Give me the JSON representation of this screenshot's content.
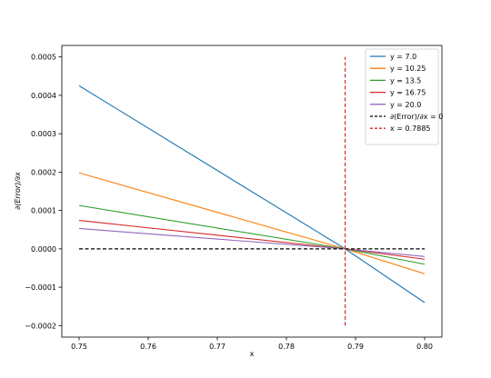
{
  "chart_data": {
    "type": "line",
    "xlabel": "x",
    "ylabel": "∂(Error)/∂x",
    "xlim": [
      0.7475,
      0.8025
    ],
    "ylim": [
      -0.00023,
      0.00053
    ],
    "xticks": [
      0.75,
      0.76,
      0.77,
      0.78,
      0.79,
      0.8
    ],
    "xtick_labels": [
      "0.75",
      "0.76",
      "0.77",
      "0.78",
      "0.79",
      "0.80"
    ],
    "yticks": [
      -0.0002,
      -0.0001,
      0.0,
      0.0001,
      0.0002,
      0.0003,
      0.0004,
      0.0005
    ],
    "ytick_labels": [
      "−0.0002",
      "−0.0001",
      "0.0000",
      "0.0001",
      "0.0002",
      "0.0003",
      "0.0004",
      "0.0005"
    ],
    "grid": false,
    "legend_position": "top-right",
    "series": [
      {
        "name": "y = 7.0",
        "color": "#1f77b4",
        "x": [
          0.75,
          0.7885,
          0.8
        ],
        "y": [
          0.000425,
          0.0,
          -0.00014
        ]
      },
      {
        "name": "y = 10.25",
        "color": "#ff7f0e",
        "x": [
          0.75,
          0.7885,
          0.8
        ],
        "y": [
          0.000198,
          0.0,
          -6.5e-05
        ]
      },
      {
        "name": "y = 13.5",
        "color": "#2ca02c",
        "x": [
          0.75,
          0.7885,
          0.8
        ],
        "y": [
          0.000113,
          0.0,
          -4e-05
        ]
      },
      {
        "name": "y = 16.75",
        "color": "#d62728",
        "x": [
          0.75,
          0.7885,
          0.8
        ],
        "y": [
          7.4e-05,
          0.0,
          -2.7e-05
        ]
      },
      {
        "name": "y = 20.0",
        "color": "#9467bd",
        "x": [
          0.75,
          0.7885,
          0.8
        ],
        "y": [
          5.3e-05,
          0.0,
          -2e-05
        ]
      }
    ],
    "reference_lines": [
      {
        "name": "∂(Error)/∂x = 0",
        "orientation": "horizontal",
        "value": 0.0,
        "color": "#000000",
        "style": "dashed",
        "from": 0.75,
        "to": 0.8
      },
      {
        "name": "x = 0.7885",
        "orientation": "vertical",
        "value": 0.7885,
        "color": "#d62728",
        "style": "dashed",
        "from": -0.0002,
        "to": 0.0005
      }
    ]
  }
}
